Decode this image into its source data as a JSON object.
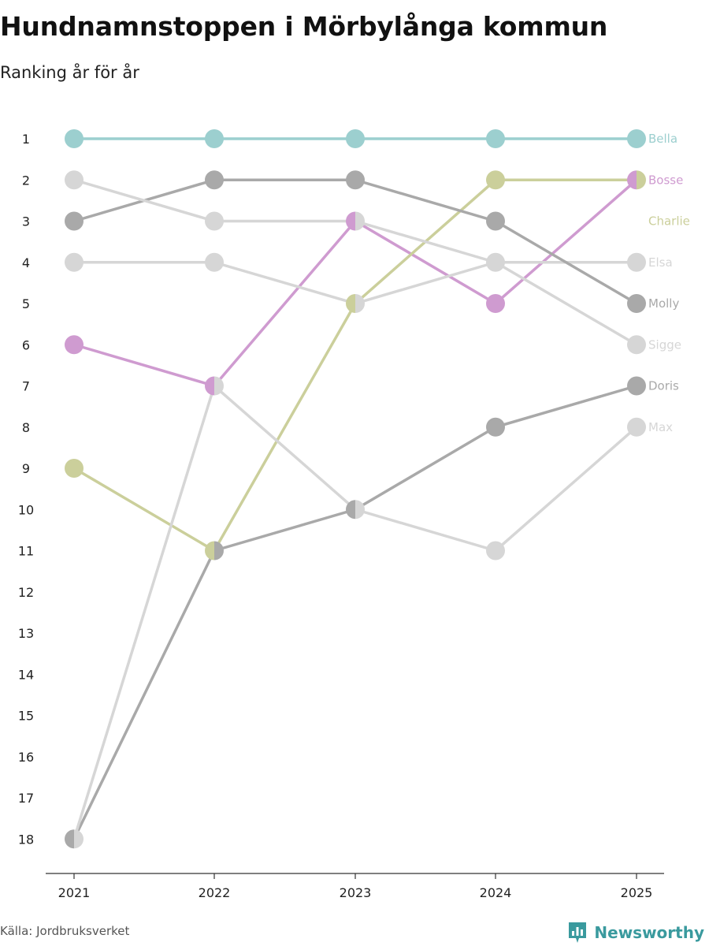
{
  "chart_data": {
    "type": "line",
    "title": "Hundnamnstoppen i Mörbylånga kommun",
    "subtitle": "Ranking år för år",
    "x": [
      "2021",
      "2022",
      "2023",
      "2024",
      "2025"
    ],
    "y_ticks": [
      "1",
      "2",
      "3",
      "4",
      "5",
      "6",
      "7",
      "8",
      "9",
      "10",
      "11",
      "12",
      "13",
      "14",
      "15",
      "16",
      "17",
      "18"
    ],
    "ylim": [
      1,
      18
    ],
    "y_reversed": true,
    "series": [
      {
        "name": "Bella",
        "color": "#9ccfcf",
        "values": [
          1,
          1,
          1,
          1,
          1
        ]
      },
      {
        "name": "Bosse",
        "color": "#cf9bd0",
        "values": [
          6,
          7,
          3,
          5,
          2
        ]
      },
      {
        "name": "Charlie",
        "color": "#cbcf9b",
        "values": [
          9,
          11,
          5,
          2,
          2
        ]
      },
      {
        "name": "Elsa",
        "color": "#d6d6d6",
        "values": [
          4,
          4,
          5,
          4,
          4
        ]
      },
      {
        "name": "Molly",
        "color": "#a9a9a9",
        "values": [
          3,
          2,
          2,
          3,
          5
        ]
      },
      {
        "name": "Sigge",
        "color": "#d6d6d6",
        "values": [
          2,
          3,
          3,
          4,
          6
        ]
      },
      {
        "name": "Doris",
        "color": "#a9a9a9",
        "values": [
          18,
          11,
          10,
          8,
          7
        ]
      },
      {
        "name": "Max",
        "color": "#d6d6d6",
        "values": [
          18,
          7,
          10,
          11,
          8
        ]
      }
    ]
  },
  "footer": {
    "source": "Källa: Jordbruksverket",
    "brand": "Newsworthy",
    "brand_color": "#3a9a9e",
    "brand_icon": "bar-chart-logo-icon"
  }
}
